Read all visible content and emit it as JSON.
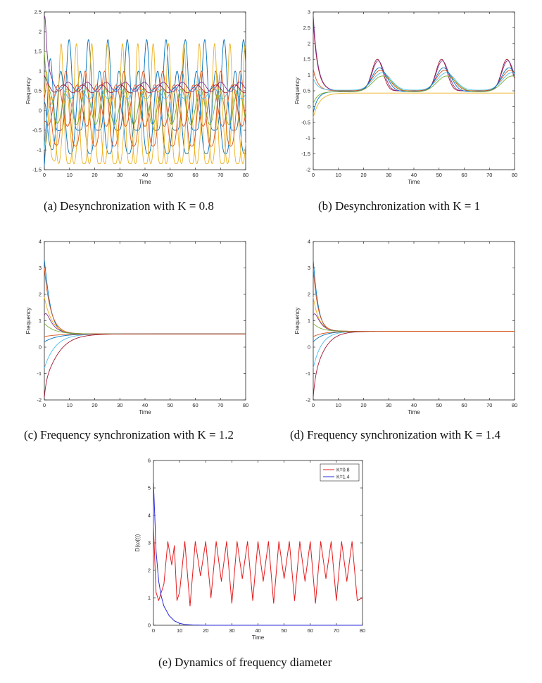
{
  "colors": {
    "series": [
      "#0072BD",
      "#D95319",
      "#EDB120",
      "#7E2F8E",
      "#77AC30",
      "#4DBEEE",
      "#A2142F"
    ],
    "k08": "#E41A1C",
    "k14": "#2B2BD9"
  },
  "chart_data": [
    {
      "id": "a",
      "type": "line",
      "caption": "(a) Desynchronization with K = 0.8",
      "xlabel": "Time",
      "ylabel": "Frequency",
      "xlim": [
        0,
        80
      ],
      "ylim": [
        -1.5,
        2.5
      ],
      "xticks": [
        0,
        10,
        20,
        30,
        40,
        50,
        60,
        70,
        80
      ],
      "yticks": [
        -1.5,
        -1,
        -0.5,
        0,
        0.5,
        1,
        1.5,
        2,
        2.5
      ],
      "behavior": "desynchronized oscillation",
      "series": [
        {
          "x": [
            0,
            1,
            4,
            6,
            8,
            10,
            15,
            20,
            25,
            30,
            40,
            50,
            60,
            70,
            80
          ],
          "y": [
            2.4,
            1.0,
            1.0,
            1.8,
            -0.5,
            1.0,
            1.8,
            -0.5,
            1.8,
            -0.5,
            1.8,
            -0.5,
            1.8,
            -0.5,
            1.2
          ]
        },
        {
          "x": [
            0,
            5,
            10,
            20,
            30,
            40,
            50,
            60,
            70,
            80
          ],
          "y": [
            -1.4,
            1.0,
            -0.9,
            1.0,
            -0.9,
            1.0,
            -0.9,
            1.0,
            -0.9,
            0.5
          ]
        },
        {
          "x": [
            0,
            5,
            10,
            20,
            30,
            40,
            50,
            60,
            70,
            80
          ],
          "y": [
            0.2,
            1.7,
            -1.4,
            1.7,
            -1.4,
            1.7,
            -1.4,
            1.7,
            -1.4,
            0.9
          ]
        },
        {
          "x": [
            0,
            10,
            20,
            30,
            40,
            50,
            60,
            70,
            80
          ],
          "y": [
            2.4,
            0.7,
            0.7,
            0.6,
            0.7,
            0.6,
            0.7,
            0.6,
            0.55
          ]
        }
      ]
    },
    {
      "id": "b",
      "type": "line",
      "caption": "(b) Desynchronization with K = 1",
      "xlabel": "Time",
      "ylabel": "Frequency",
      "xlim": [
        0,
        80
      ],
      "ylim": [
        -2,
        3
      ],
      "xticks": [
        0,
        10,
        20,
        30,
        40,
        50,
        60,
        70,
        80
      ],
      "yticks": [
        -2,
        -1.5,
        -1,
        -0.5,
        0,
        0.5,
        1,
        1.5,
        2,
        2.5,
        3
      ],
      "behavior": "periodic bursts near t = 25, 51, 77; one series settles at 0.43",
      "series": [
        {
          "x": [
            0,
            10,
            20,
            25,
            30,
            40,
            51,
            60,
            70,
            77,
            80
          ],
          "y": [
            2.8,
            0.6,
            0.5,
            1.5,
            0.6,
            0.5,
            1.5,
            0.6,
            0.5,
            1.5,
            1.0
          ]
        },
        {
          "x": [
            0,
            10,
            20,
            27,
            35,
            45,
            52,
            60,
            70,
            78,
            80
          ],
          "y": [
            0.9,
            0.6,
            0.5,
            1.1,
            0.55,
            0.5,
            1.1,
            0.55,
            0.5,
            1.1,
            0.9
          ]
        },
        {
          "x": [
            0,
            5,
            10,
            20,
            40,
            60,
            80
          ],
          "y": [
            -0.3,
            0.35,
            0.42,
            0.43,
            0.43,
            0.43,
            0.43
          ]
        }
      ]
    },
    {
      "id": "c",
      "type": "line",
      "caption": "(c) Frequency synchronization with K = 1.2",
      "xlabel": "Time",
      "ylabel": "Frequency",
      "xlim": [
        0,
        80
      ],
      "ylim": [
        -2,
        4
      ],
      "xticks": [
        0,
        10,
        20,
        30,
        40,
        50,
        60,
        70,
        80
      ],
      "yticks": [
        -2,
        -1,
        0,
        1,
        2,
        3,
        4
      ],
      "behavior": "converges to common frequency 0.5 by t ≈ 20",
      "sync_value": 0.5
    },
    {
      "id": "d",
      "type": "line",
      "caption": "(d) Frequency synchronization with K = 1.4",
      "xlabel": "Time",
      "ylabel": "Frequency",
      "xlim": [
        0,
        80
      ],
      "ylim": [
        -2,
        4
      ],
      "xticks": [
        0,
        10,
        20,
        30,
        40,
        50,
        60,
        70,
        80
      ],
      "yticks": [
        -2,
        -1,
        0,
        1,
        2,
        3,
        4
      ],
      "behavior": "converges to common frequency 0.6 by t ≈ 15",
      "sync_value": 0.6
    },
    {
      "id": "e",
      "type": "line",
      "caption": "(e) Dynamics of frequency diameter",
      "xlabel": "Time",
      "ylabel": "D(ω(t))",
      "xlim": [
        0,
        80
      ],
      "ylim": [
        0,
        6
      ],
      "xticks": [
        0,
        10,
        20,
        30,
        40,
        50,
        60,
        70,
        80
      ],
      "yticks": [
        0,
        1,
        2,
        3,
        4,
        5,
        6
      ],
      "legend": {
        "position": "top-right",
        "entries": [
          "K=0.8",
          "K=1.4"
        ]
      },
      "series": [
        {
          "name": "K=0.8",
          "x": [
            0,
            1,
            2,
            4,
            5.5,
            7,
            8,
            9,
            10,
            12,
            14,
            16,
            18,
            20,
            22,
            24,
            26,
            28,
            30,
            32,
            34,
            36,
            38,
            40,
            42,
            44,
            46,
            48,
            50,
            52,
            54,
            56,
            58,
            60,
            62,
            64,
            66,
            68,
            70,
            72,
            74,
            76,
            78,
            80
          ],
          "y": [
            3.6,
            1.2,
            0.9,
            1.5,
            3.05,
            2.2,
            2.9,
            0.9,
            1.2,
            3.05,
            0.7,
            3.05,
            1.8,
            3.05,
            1.0,
            3.05,
            1.6,
            3.05,
            0.8,
            3.05,
            1.7,
            3.05,
            0.9,
            3.05,
            1.6,
            3.05,
            0.8,
            3.05,
            1.7,
            3.05,
            0.9,
            3.05,
            1.6,
            3.05,
            0.8,
            3.05,
            1.7,
            3.05,
            0.9,
            3.05,
            1.6,
            3.05,
            0.9,
            1.0
          ]
        },
        {
          "name": "K=1.4",
          "x": [
            0,
            0.5,
            1,
            2,
            3,
            4,
            6,
            8,
            10,
            12,
            15,
            20,
            30,
            40,
            50,
            60,
            70,
            80
          ],
          "y": [
            5.2,
            4.0,
            2.7,
            1.6,
            1.05,
            0.7,
            0.35,
            0.16,
            0.07,
            0.03,
            0.01,
            0,
            0,
            0,
            0,
            0,
            0,
            0
          ]
        }
      ]
    }
  ]
}
